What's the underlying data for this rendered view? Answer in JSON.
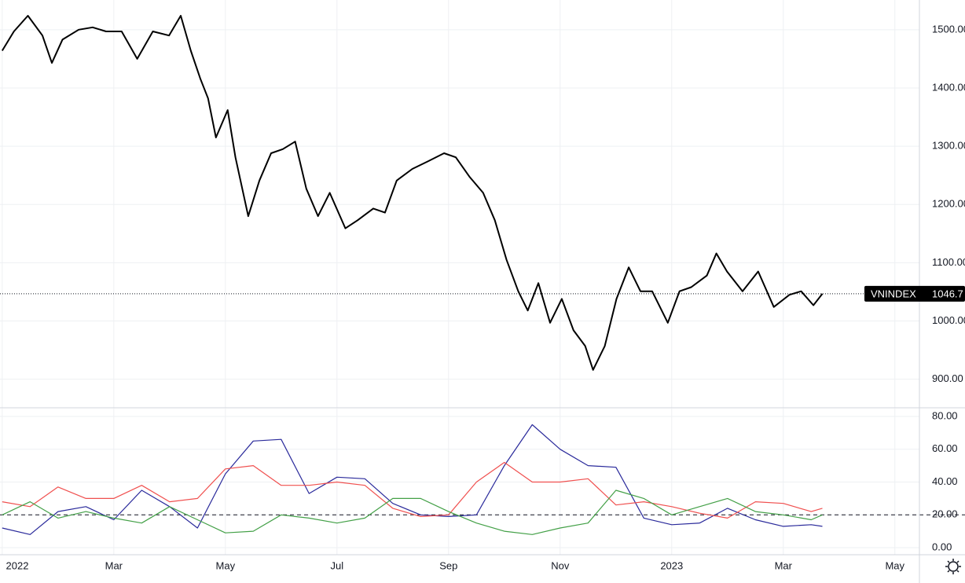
{
  "chart_data": [
    {
      "type": "line",
      "x": [
        0,
        0.21,
        0.46,
        0.72,
        0.89,
        1.08,
        1.37,
        1.62,
        1.86,
        2.14,
        2.42,
        2.7,
        2.99,
        3.2,
        3.38,
        3.55,
        3.69,
        3.83,
        4.04,
        4.18,
        4.41,
        4.61,
        4.82,
        5.03,
        5.25,
        5.45,
        5.66,
        5.87,
        6.15,
        6.37,
        6.65,
        6.86,
        7.07,
        7.35,
        7.63,
        7.92,
        8.13,
        8.38,
        8.62,
        8.83,
        9.04,
        9.25,
        9.42,
        9.61,
        9.82,
        10.03,
        10.24,
        10.45,
        10.59,
        10.8,
        11.01,
        11.23,
        11.44,
        11.65,
        11.93,
        12.14,
        12.35,
        12.63,
        12.8,
        12.99,
        13.27,
        13.55,
        13.83,
        14.11,
        14.32,
        14.54,
        14.7
      ],
      "series": [
        {
          "name": "VNINDEX",
          "color": "#000000",
          "values": [
            1464,
            1497,
            1524,
            1490,
            1443,
            1483,
            1500,
            1504,
            1497,
            1497,
            1450,
            1497,
            1490,
            1524,
            1464,
            1416,
            1382,
            1315,
            1362,
            1281,
            1180,
            1241,
            1288,
            1295,
            1308,
            1227,
            1180,
            1220,
            1159,
            1173,
            1193,
            1186,
            1241,
            1261,
            1274,
            1288,
            1281,
            1247,
            1220,
            1173,
            1105,
            1051,
            1018,
            1065,
            997,
            1038,
            984,
            957,
            916,
            957,
            1038,
            1092,
            1051,
            1051,
            997,
            1051,
            1058,
            1078,
            1116,
            1085,
            1051,
            1085,
            1024,
            1045,
            1051,
            1027,
            1046.7
          ]
        }
      ],
      "price_line": 1046.7,
      "ylim": [
        851,
        1551
      ],
      "yticks": [
        {
          "value": 900,
          "label": "900.00"
        },
        {
          "value": 1000,
          "label": "1000.00"
        },
        {
          "value": 1100,
          "label": "1100.00"
        },
        {
          "value": 1200,
          "label": "1200.00"
        },
        {
          "value": 1300,
          "label": "1300.00"
        },
        {
          "value": 1400,
          "label": "1400.00"
        },
        {
          "value": 1500,
          "label": "1500.00"
        }
      ],
      "grid": true
    },
    {
      "type": "line",
      "x": [
        0,
        0.5,
        1,
        1.5,
        2,
        2.5,
        3,
        3.5,
        4,
        4.5,
        5,
        5.5,
        6,
        6.5,
        7,
        7.5,
        8,
        8.5,
        9,
        9.5,
        10,
        10.5,
        11,
        11.5,
        12,
        12.5,
        13,
        13.5,
        14,
        14.5,
        14.7
      ],
      "series": [
        {
          "color": "#2a2a9b",
          "values": [
            12,
            8,
            22,
            25,
            17,
            35,
            25,
            12,
            45,
            65,
            66,
            33,
            43,
            42,
            27,
            20,
            19,
            20,
            50,
            75,
            60,
            50,
            49,
            18,
            14,
            15,
            24,
            17,
            13,
            14,
            13
          ]
        },
        {
          "color": "#f0504f",
          "values": [
            28,
            25,
            37,
            30,
            30,
            38,
            28,
            30,
            48,
            50,
            38,
            38,
            40,
            38,
            24,
            19,
            20,
            40,
            52,
            40,
            40,
            42,
            26,
            28,
            25,
            21,
            18,
            28,
            27,
            22,
            24
          ]
        },
        {
          "color": "#43a047",
          "values": [
            20,
            28,
            18,
            22,
            18,
            15,
            25,
            17,
            9,
            10,
            20,
            18,
            15,
            18,
            30,
            30,
            22,
            15,
            10,
            8,
            12,
            15,
            35,
            30,
            20,
            25,
            30,
            22,
            20,
            17,
            20
          ]
        }
      ],
      "hline": 20,
      "ylim": [
        -4.3,
        84.8
      ],
      "yticks": [
        {
          "value": 0,
          "label": "0.00"
        },
        {
          "value": 20,
          "label": "20.00"
        },
        {
          "value": 40,
          "label": "40.00"
        },
        {
          "value": 60,
          "label": "60.00"
        },
        {
          "value": 80,
          "label": "80.00"
        }
      ],
      "xlim": [
        -0.04,
        16.44
      ],
      "xticks": [
        {
          "value": 0,
          "label": "2022"
        },
        {
          "value": 2,
          "label": "Mar"
        },
        {
          "value": 4,
          "label": "May"
        },
        {
          "value": 6,
          "label": "Jul"
        },
        {
          "value": 8,
          "label": "Sep"
        },
        {
          "value": 10,
          "label": "Nov"
        },
        {
          "value": 12,
          "label": "2023"
        },
        {
          "value": 14,
          "label": "Mar"
        },
        {
          "value": 16,
          "label": "May"
        }
      ],
      "grid": true
    }
  ]
}
